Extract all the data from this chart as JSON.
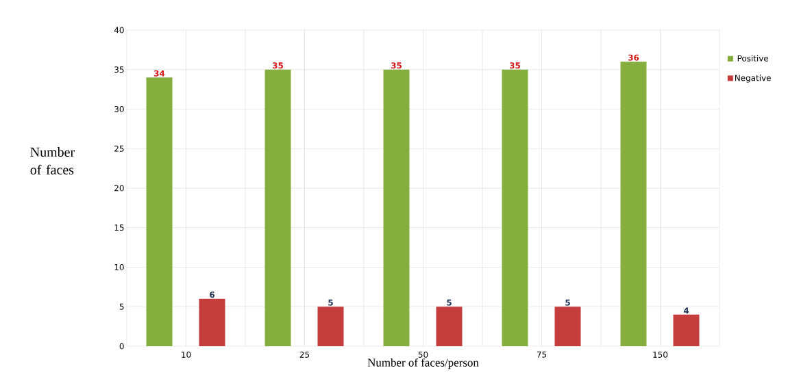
{
  "chart_data": {
    "type": "bar",
    "xlabel": "Number of faces/person",
    "ylabel": "Number of faces",
    "categories": [
      "10",
      "25",
      "50",
      "75",
      "150"
    ],
    "series": [
      {
        "name": "Positive",
        "color": "#86ae3e",
        "values": [
          34,
          35,
          35,
          35,
          36
        ]
      },
      {
        "name": "Negative",
        "color": "#c43c3c",
        "values": [
          6,
          5,
          5,
          5,
          4
        ]
      }
    ],
    "ylim": [
      0,
      40
    ],
    "yticks": [
      0,
      5,
      10,
      15,
      20,
      25,
      30,
      35,
      40
    ],
    "grid": true,
    "legend": "top right",
    "data_labels": true
  }
}
